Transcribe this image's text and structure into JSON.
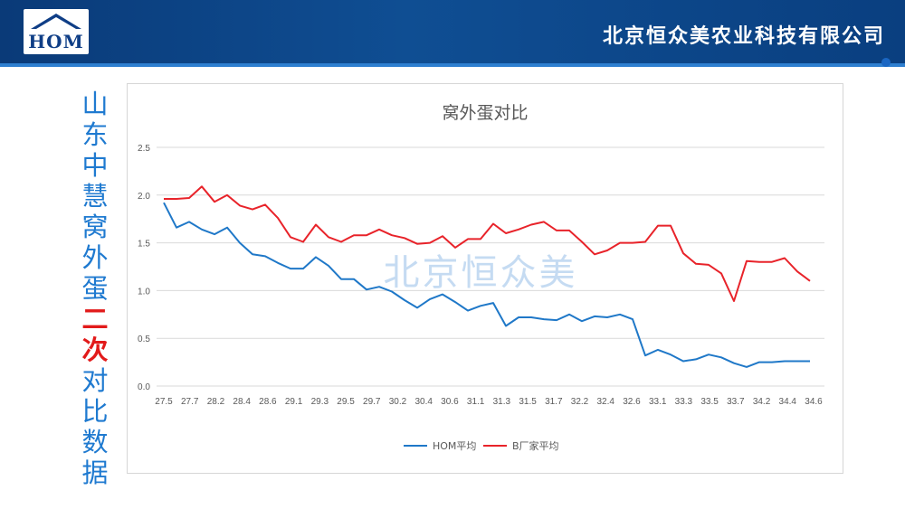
{
  "header": {
    "logo_text": "HOM",
    "company": "北京恒众美农业科技有限公司"
  },
  "side_title": {
    "chars": [
      "山",
      "东",
      "中",
      "慧",
      "窝",
      "外",
      "蛋"
    ],
    "highlight": [
      "二",
      "次"
    ],
    "chars_after": [
      "对",
      "比",
      "数",
      "据"
    ]
  },
  "watermark": "北京恒众美",
  "colors": {
    "header_bg": "#0f4e93",
    "hom_line": "#1f78c8",
    "b_line": "#e8232a",
    "side_title": "#1f7ad0",
    "highlight": "#e21a1a"
  },
  "chart_data": {
    "type": "line",
    "title": "窝外蛋对比",
    "ylim": [
      0,
      2.5
    ],
    "yticks": [
      "0.0",
      "0.5",
      "1.0",
      "1.5",
      "2.0",
      "2.5"
    ],
    "x_tick_labels": [
      "27.5",
      "27.7",
      "28.2",
      "28.4",
      "28.6",
      "29.1",
      "29.3",
      "29.5",
      "29.7",
      "30.2",
      "30.4",
      "30.6",
      "31.1",
      "31.3",
      "31.5",
      "31.7",
      "32.2",
      "32.4",
      "32.6",
      "33.1",
      "33.3",
      "33.5",
      "33.7",
      "34.2",
      "34.4",
      "34.6"
    ],
    "grid": true,
    "legend_position": "bottom",
    "series": [
      {
        "name": "HOM平均",
        "color": "#1f78c8",
        "values": [
          1.92,
          1.66,
          1.72,
          1.64,
          1.59,
          1.66,
          1.5,
          1.38,
          1.36,
          1.29,
          1.23,
          1.23,
          1.35,
          1.26,
          1.12,
          1.12,
          1.01,
          1.04,
          0.99,
          0.9,
          0.82,
          0.91,
          0.96,
          0.88,
          0.79,
          0.84,
          0.87,
          0.63,
          0.72,
          0.72,
          0.7,
          0.69,
          0.75,
          0.68,
          0.73,
          0.72,
          0.75,
          0.7,
          0.32,
          0.38,
          0.33,
          0.26,
          0.28,
          0.33,
          0.3,
          0.24,
          0.2,
          0.25,
          0.25,
          0.26,
          0.26,
          0.26
        ]
      },
      {
        "name": "B厂家平均",
        "color": "#e8232a",
        "values": [
          1.96,
          1.96,
          1.97,
          2.09,
          1.93,
          2.0,
          1.89,
          1.85,
          1.9,
          1.76,
          1.56,
          1.51,
          1.69,
          1.56,
          1.51,
          1.58,
          1.58,
          1.64,
          1.58,
          1.55,
          1.49,
          1.5,
          1.57,
          1.45,
          1.54,
          1.54,
          1.7,
          1.6,
          1.64,
          1.69,
          1.72,
          1.63,
          1.63,
          1.51,
          1.38,
          1.42,
          1.5,
          1.5,
          1.51,
          1.68,
          1.68,
          1.39,
          1.28,
          1.27,
          1.18,
          0.89,
          1.31,
          1.3,
          1.3,
          1.34,
          1.2,
          1.1
        ]
      }
    ]
  }
}
